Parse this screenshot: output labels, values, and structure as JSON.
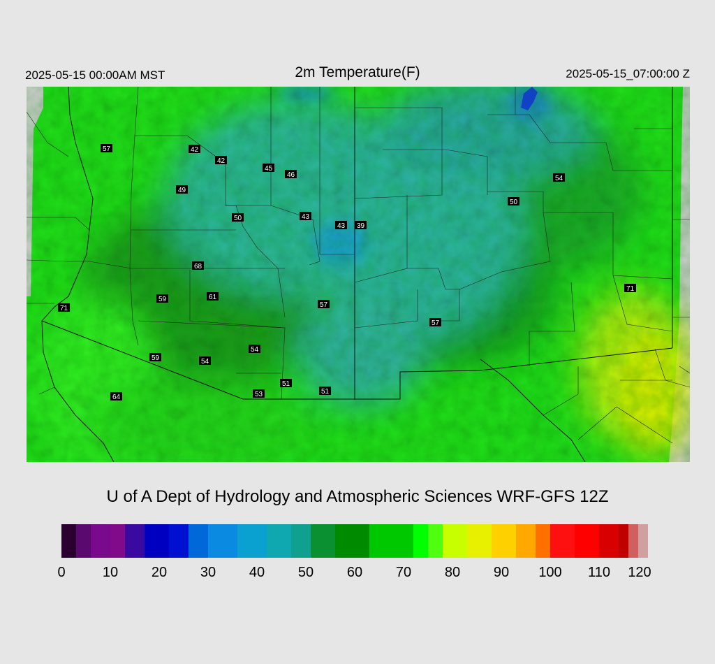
{
  "header": {
    "local_time": "2025-05-15 00:00AM MST",
    "title": "2m Temperature(F)",
    "utc_time": "2025-05-15_07:00:00 Z"
  },
  "credit": "U of A Dept of Hydrology and Atmospheric Sciences WRF-GFS 12Z",
  "colorbar": {
    "min": 0,
    "max": 120,
    "tick_labels": [
      "0",
      "10",
      "20",
      "30",
      "40",
      "50",
      "60",
      "70",
      "80",
      "90",
      "100",
      "110",
      "120"
    ],
    "stops": [
      {
        "value": 0,
        "color": "#2a0030"
      },
      {
        "value": 3,
        "color": "#5a0a6e"
      },
      {
        "value": 6,
        "color": "#7a0a8c"
      },
      {
        "value": 10,
        "color": "#800a8a"
      },
      {
        "value": 13,
        "color": "#3a0aa0"
      },
      {
        "value": 17,
        "color": "#0000c0"
      },
      {
        "value": 22,
        "color": "#0010d0"
      },
      {
        "value": 26,
        "color": "#0068d8"
      },
      {
        "value": 30,
        "color": "#0a8ae0"
      },
      {
        "value": 36,
        "color": "#0aa0d0"
      },
      {
        "value": 42,
        "color": "#10a8b0"
      },
      {
        "value": 47,
        "color": "#10a090"
      },
      {
        "value": 51,
        "color": "#0a9030"
      },
      {
        "value": 56,
        "color": "#008a00"
      },
      {
        "value": 63,
        "color": "#00c800"
      },
      {
        "value": 72,
        "color": "#00ff00"
      },
      {
        "value": 75,
        "color": "#50ff10"
      },
      {
        "value": 78,
        "color": "#c8ff00"
      },
      {
        "value": 83,
        "color": "#e8f000"
      },
      {
        "value": 88,
        "color": "#ffd000"
      },
      {
        "value": 93,
        "color": "#ffa800"
      },
      {
        "value": 97,
        "color": "#ff7000"
      },
      {
        "value": 100,
        "color": "#ff1010"
      },
      {
        "value": 105,
        "color": "#ff0000"
      },
      {
        "value": 110,
        "color": "#d80000"
      },
      {
        "value": 114,
        "color": "#c00000"
      },
      {
        "value": 116,
        "color": "#d06060"
      },
      {
        "value": 118,
        "color": "#d0a0a0"
      },
      {
        "value": 120,
        "color": "#d0d0d0"
      }
    ]
  },
  "station_values": [
    "57",
    "42",
    "42",
    "45",
    "46",
    "49",
    "50",
    "43",
    "43",
    "39",
    "68",
    "59",
    "61",
    "57",
    "71",
    "54",
    "59",
    "54",
    "51",
    "53",
    "51",
    "64",
    "57",
    "50",
    "54",
    "71"
  ],
  "colors": {
    "background": "#e6e6e6",
    "land_green": "#22e01a",
    "cool_teal": "#2fb89a"
  }
}
